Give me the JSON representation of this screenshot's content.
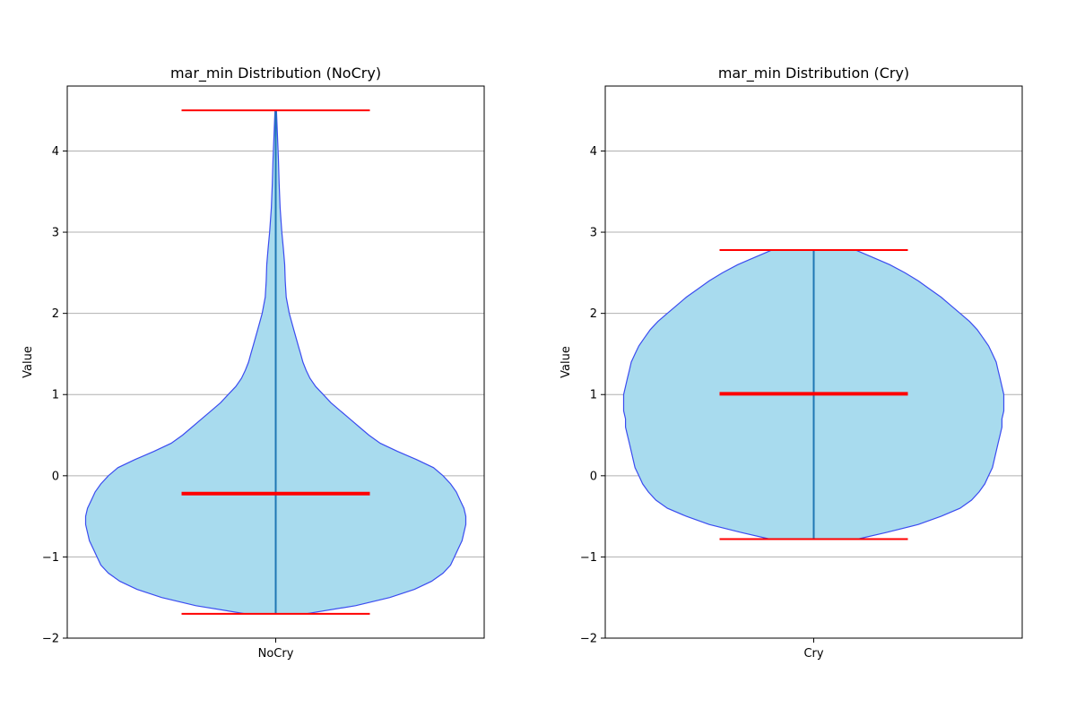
{
  "chart_data": [
    {
      "type": "violin",
      "title": "mar_min Distribution (NoCry)",
      "xlabel": "",
      "ylabel": "Value",
      "categories": [
        "NoCry"
      ],
      "ylim": [
        -2.0,
        4.8
      ],
      "yticks": [
        -2,
        -1,
        0,
        1,
        2,
        3,
        4
      ],
      "ytick_labels": [
        "−2",
        "−1",
        "0",
        "1",
        "2",
        "3",
        "4"
      ],
      "grid": "y",
      "stats": {
        "min": -1.7,
        "max": 4.5,
        "median": -0.22
      },
      "density_profile": [
        [
          -1.7,
          0.16
        ],
        [
          -1.6,
          0.42
        ],
        [
          -1.5,
          0.6
        ],
        [
          -1.4,
          0.73
        ],
        [
          -1.3,
          0.82
        ],
        [
          -1.2,
          0.88
        ],
        [
          -1.1,
          0.92
        ],
        [
          -1.0,
          0.94
        ],
        [
          -0.9,
          0.96
        ],
        [
          -0.8,
          0.98
        ],
        [
          -0.7,
          0.99
        ],
        [
          -0.6,
          1.0
        ],
        [
          -0.5,
          1.0
        ],
        [
          -0.4,
          0.99
        ],
        [
          -0.3,
          0.97
        ],
        [
          -0.2,
          0.95
        ],
        [
          -0.1,
          0.92
        ],
        [
          0.0,
          0.88
        ],
        [
          0.1,
          0.83
        ],
        [
          0.2,
          0.74
        ],
        [
          0.3,
          0.64
        ],
        [
          0.4,
          0.55
        ],
        [
          0.5,
          0.49
        ],
        [
          0.6,
          0.44
        ],
        [
          0.7,
          0.39
        ],
        [
          0.8,
          0.34
        ],
        [
          0.9,
          0.29
        ],
        [
          1.0,
          0.25
        ],
        [
          1.1,
          0.21
        ],
        [
          1.2,
          0.18
        ],
        [
          1.3,
          0.16
        ],
        [
          1.4,
          0.143
        ],
        [
          1.5,
          0.131
        ],
        [
          1.6,
          0.119
        ],
        [
          1.8,
          0.095
        ],
        [
          2.0,
          0.071
        ],
        [
          2.2,
          0.055
        ],
        [
          2.4,
          0.05
        ],
        [
          2.6,
          0.047
        ],
        [
          2.8,
          0.04
        ],
        [
          3.0,
          0.032
        ],
        [
          3.3,
          0.023
        ],
        [
          3.6,
          0.018
        ],
        [
          3.9,
          0.014
        ],
        [
          4.2,
          0.009
        ],
        [
          4.5,
          0.004
        ]
      ],
      "colors": {
        "fill": "#a8dbee",
        "edge": "#3b4cf0",
        "center_line": "#1f77b4",
        "stats_lines": "#ff0000"
      }
    },
    {
      "type": "violin",
      "title": "mar_min Distribution (Cry)",
      "xlabel": "",
      "ylabel": "Value",
      "categories": [
        "Cry"
      ],
      "ylim": [
        -2.0,
        4.8
      ],
      "yticks": [
        -2,
        -1,
        0,
        1,
        2,
        3,
        4
      ],
      "ytick_labels": [
        "−2",
        "−1",
        "0",
        "1",
        "2",
        "3",
        "4"
      ],
      "grid": "y",
      "stats": {
        "min": -0.78,
        "max": 2.78,
        "median": 1.01
      },
      "density_profile": [
        [
          -0.78,
          0.23
        ],
        [
          -0.7,
          0.38
        ],
        [
          -0.6,
          0.55
        ],
        [
          -0.5,
          0.67
        ],
        [
          -0.4,
          0.77
        ],
        [
          -0.3,
          0.83
        ],
        [
          -0.2,
          0.87
        ],
        [
          -0.1,
          0.9
        ],
        [
          0.0,
          0.92
        ],
        [
          0.1,
          0.94
        ],
        [
          0.2,
          0.95
        ],
        [
          0.3,
          0.96
        ],
        [
          0.4,
          0.97
        ],
        [
          0.5,
          0.98
        ],
        [
          0.6,
          0.99
        ],
        [
          0.7,
          0.99
        ],
        [
          0.8,
          1.0
        ],
        [
          0.9,
          1.0
        ],
        [
          1.0,
          1.0
        ],
        [
          1.1,
          0.99
        ],
        [
          1.2,
          0.98
        ],
        [
          1.3,
          0.97
        ],
        [
          1.4,
          0.96
        ],
        [
          1.5,
          0.94
        ],
        [
          1.6,
          0.92
        ],
        [
          1.7,
          0.89
        ],
        [
          1.8,
          0.86
        ],
        [
          1.9,
          0.82
        ],
        [
          2.0,
          0.77
        ],
        [
          2.1,
          0.72
        ],
        [
          2.2,
          0.67
        ],
        [
          2.3,
          0.61
        ],
        [
          2.4,
          0.55
        ],
        [
          2.5,
          0.48
        ],
        [
          2.6,
          0.4
        ],
        [
          2.7,
          0.3
        ],
        [
          2.78,
          0.22
        ]
      ],
      "colors": {
        "fill": "#a8dbee",
        "edge": "#3b4cf0",
        "center_line": "#1f77b4",
        "stats_lines": "#ff0000"
      }
    }
  ]
}
